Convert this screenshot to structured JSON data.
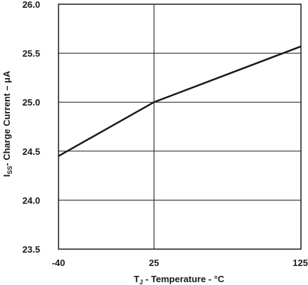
{
  "chart_data": {
    "type": "line",
    "title": "",
    "xlabel": {
      "main": "T",
      "sub": "J",
      "rest": " - Temperature - °C"
    },
    "ylabel": {
      "main": "I",
      "sub": "SS",
      "rest": "- Charge Current – μA"
    },
    "xlim": [
      -40,
      125
    ],
    "ylim": [
      23.5,
      26.0
    ],
    "x_ticks": [
      -40,
      25,
      125
    ],
    "x_tick_labels": [
      "-40",
      "25",
      "125"
    ],
    "y_ticks": [
      23.5,
      24.0,
      24.5,
      25.0,
      25.5,
      26.0
    ],
    "y_tick_labels": [
      "23.5",
      "24.0",
      "24.5",
      "25.0",
      "25.5",
      "26.0"
    ],
    "grid": true,
    "line_color": "#1a1a1a",
    "series": [
      {
        "x": [
          -40,
          25,
          125
        ],
        "y": [
          24.45,
          25.0,
          25.57
        ]
      }
    ]
  }
}
